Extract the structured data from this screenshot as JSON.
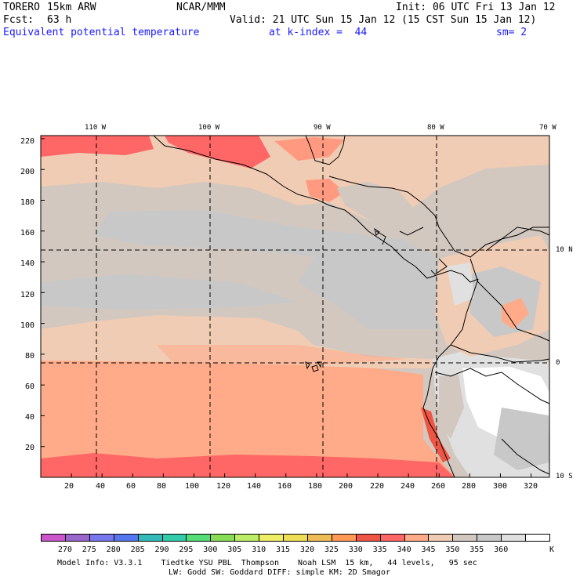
{
  "header": {
    "model": "TORERO",
    "resolution": "15km ARW",
    "center": "NCAR/MMM",
    "init": "Init: 06 UTC Fri 13 Jan 12",
    "fcst_label": "Fcst:",
    "fcst_value": "63 h",
    "valid": "Valid: 21 UTC Sun 15 Jan 12 (15 CST Sun 15 Jan 12)",
    "field": "Equivalent potential temperature",
    "level": "at k-index =  44",
    "smoothing": "sm= 2"
  },
  "map": {
    "lon_labels": [
      "110 W",
      "100 W",
      "90 W",
      "80 W",
      "70 W"
    ],
    "lat_labels": [
      "10 N",
      "0",
      "10 S"
    ],
    "y_ticks": [
      "220",
      "200",
      "180",
      "160",
      "140",
      "120",
      "100",
      "80",
      "60",
      "40",
      "20"
    ],
    "x_ticks": [
      "20",
      "40",
      "60",
      "80",
      "100",
      "120",
      "140",
      "160",
      "180",
      "200",
      "220",
      "240",
      "260",
      "280",
      "300",
      "320"
    ]
  },
  "colorbar": {
    "labels": [
      "270",
      "275",
      "280",
      "285",
      "290",
      "295",
      "300",
      "305",
      "310",
      "315",
      "320",
      "325",
      "330",
      "335",
      "340",
      "345",
      "350",
      "355",
      "360"
    ],
    "unit": "K",
    "colors": [
      "#cc55cc",
      "#9966cc",
      "#7777ee",
      "#5577ee",
      "#33bbbb",
      "#33ccaa",
      "#55dd77",
      "#88dd55",
      "#bbee66",
      "#eeee66",
      "#eedd55",
      "#eebb55",
      "#ff9955",
      "#ee5544",
      "#ff6666",
      "#ffaa88",
      "#f0ccb4",
      "#d2c8c0",
      "#c8c8c8",
      "#e0e0e0",
      "#ffffff"
    ]
  },
  "footer": {
    "line1": "Model Info: V3.3.1    Tiedtke YSU PBL  Thompson    Noah LSM  15 km,   44 levels,   95 sec",
    "line2": "LW: Godd SW: Goddard DIFF: simple KM: 2D Smagor"
  }
}
